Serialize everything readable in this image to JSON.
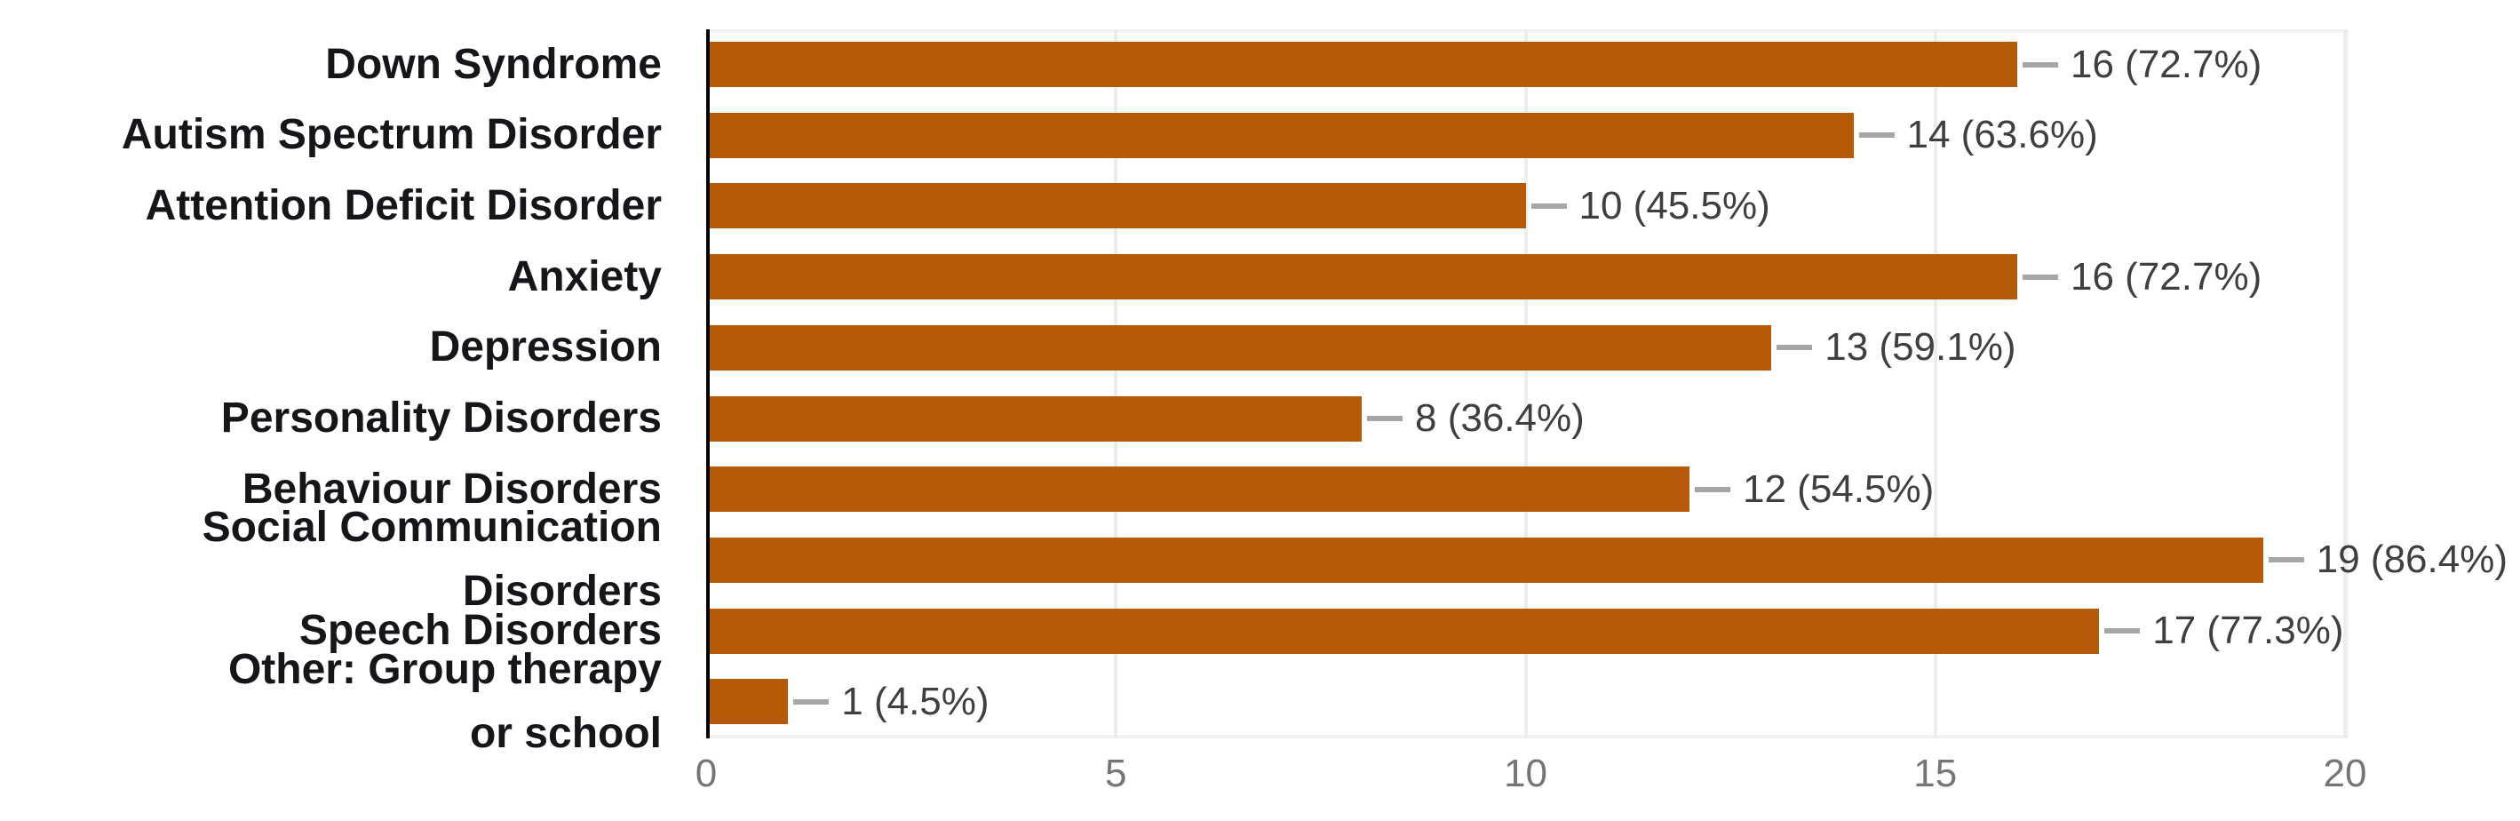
{
  "chart_data": {
    "type": "bar",
    "orientation": "horizontal",
    "title": "",
    "categories": [
      "Down Syndrome",
      "Autism Spectrum Disorder",
      "Attention Deficit Disorder",
      "Anxiety",
      "Depression",
      "Personality Disorders",
      "Behaviour Disorders",
      "Social Communication Disorders",
      "Speech Disorders",
      "Other: Group therapy\nor school"
    ],
    "values": [
      16,
      14,
      10,
      16,
      13,
      8,
      12,
      19,
      17,
      1
    ],
    "value_labels": [
      "16 (72.7%)",
      "14 (63.6%)",
      "10 (45.5%)",
      "16 (72.7%)",
      "13 (59.1%)",
      "8 (36.4%)",
      "12 (54.5%)",
      "19 (86.4%)",
      "17 (77.3%)",
      "1 (4.5%)"
    ],
    "xlabel": "",
    "ylabel": "",
    "xlim": [
      0,
      20
    ],
    "x_ticks": [
      "0",
      "5",
      "10",
      "15",
      "20"
    ],
    "grid": "vertical-light",
    "legend": "none",
    "colors": {
      "bar": "#b65a08",
      "axis_line": "#000000",
      "gridline": "#ededed",
      "plot_border": "#f2f2f2",
      "category_label": "#14161a",
      "value_label": "#3f3f3f",
      "connector": "#a6a6a6",
      "tick_label": "#757575",
      "background": "#ffffff"
    }
  }
}
